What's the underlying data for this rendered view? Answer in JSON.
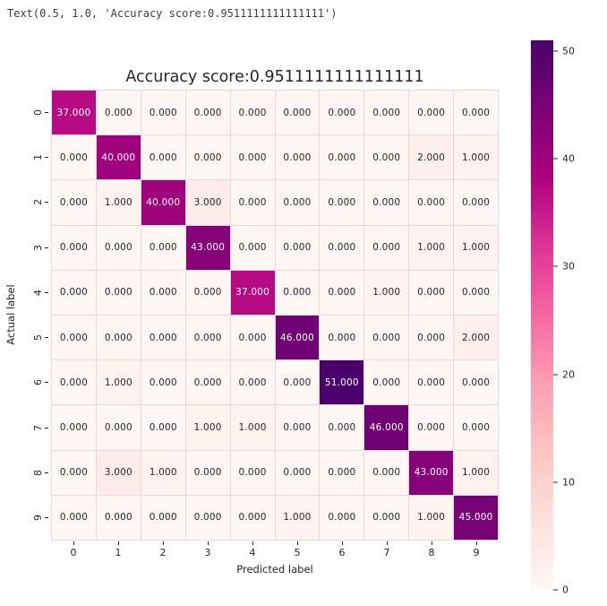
{
  "notebook_output": "Text(0.5, 1.0, 'Accuracy score:0.9511111111111111')",
  "chart_data": {
    "type": "heatmap",
    "title": "Accuracy score:0.9511111111111111",
    "xlabel": "Predicted label",
    "ylabel": "Actual label",
    "x_tick_labels": [
      "0",
      "1",
      "2",
      "3",
      "4",
      "5",
      "6",
      "7",
      "8",
      "9"
    ],
    "y_tick_labels": [
      "0",
      "1",
      "2",
      "3",
      "4",
      "5",
      "6",
      "7",
      "8",
      "9"
    ],
    "matrix": [
      [
        37,
        0,
        0,
        0,
        0,
        0,
        0,
        0,
        0,
        0
      ],
      [
        0,
        40,
        0,
        0,
        0,
        0,
        0,
        0,
        2,
        1
      ],
      [
        0,
        1,
        40,
        3,
        0,
        0,
        0,
        0,
        0,
        0
      ],
      [
        0,
        0,
        0,
        43,
        0,
        0,
        0,
        0,
        1,
        1
      ],
      [
        0,
        0,
        0,
        0,
        37,
        0,
        0,
        1,
        0,
        0
      ],
      [
        0,
        0,
        0,
        0,
        0,
        46,
        0,
        0,
        0,
        2
      ],
      [
        0,
        1,
        0,
        0,
        0,
        0,
        51,
        0,
        0,
        0
      ],
      [
        0,
        0,
        0,
        1,
        1,
        0,
        0,
        46,
        0,
        0
      ],
      [
        0,
        3,
        1,
        0,
        0,
        0,
        0,
        0,
        43,
        1
      ],
      [
        0,
        0,
        0,
        0,
        0,
        1,
        0,
        0,
        1,
        45
      ]
    ],
    "annotation_decimals": 3,
    "vmin": 0,
    "vmax": 51,
    "colormap": "RdPu",
    "colormap_stops": [
      [
        0.0,
        "#fff7f3"
      ],
      [
        0.125,
        "#fde0dd"
      ],
      [
        0.25,
        "#fcc5c0"
      ],
      [
        0.375,
        "#fa9fb5"
      ],
      [
        0.5,
        "#f768a1"
      ],
      [
        0.625,
        "#dd3497"
      ],
      [
        0.75,
        "#ae017e"
      ],
      [
        0.875,
        "#7a0177"
      ],
      [
        1.0,
        "#49006a"
      ]
    ],
    "colorbar_ticks": [
      0,
      10,
      20,
      30,
      40,
      50
    ],
    "colorbar_position": "right",
    "grid_line_color": "#e6d9d9",
    "annotation_dark_color": "#262626",
    "annotation_light_color": "#ffffff"
  }
}
